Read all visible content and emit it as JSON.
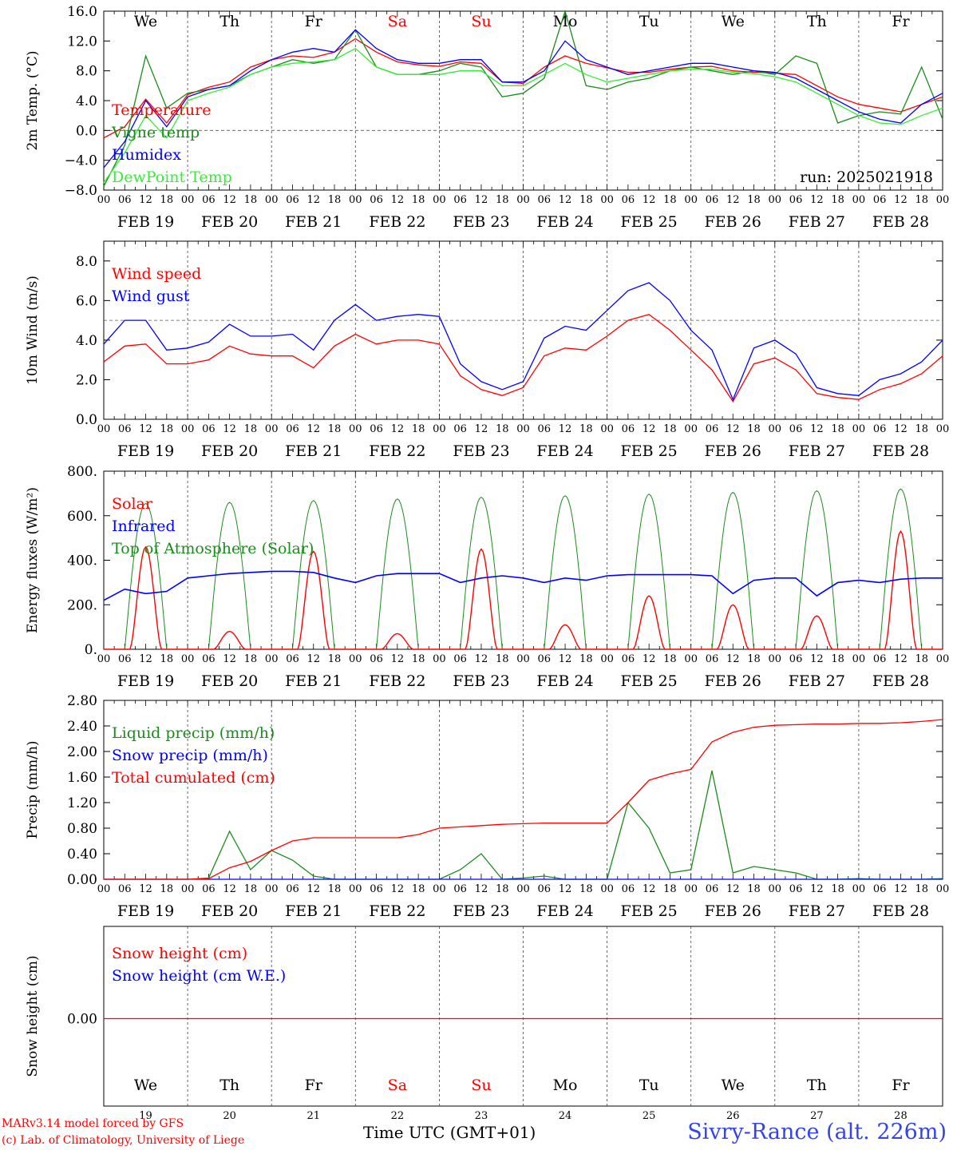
{
  "page": {
    "credit_line1": "MARv3.14 model forced by GFS",
    "credit_line2": "(c) Lab. of Climatology, University of Liege",
    "xaxis_title": "Time UTC (GMT+01)",
    "station": "Sivry-Rance (alt. 226m)",
    "run_label": "run: 2025021918"
  },
  "colors": {
    "red": "#ff0000",
    "dark_green": "#1a8c1a",
    "blue": "#0000ff",
    "light_green": "#33ee33",
    "weekend": "#ff0000",
    "label_blue": "#3344ee"
  },
  "chart_data": [
    {
      "type": "line",
      "panel": "temperature",
      "ylabel": "2m Temp. (°C)",
      "ylim": [
        -8.0,
        16.0
      ],
      "yticks": [
        "16.0",
        "12.0",
        "8.0",
        "4.0",
        "0.0",
        "−4.0",
        "−8.0"
      ],
      "dashed_reference": 0.0,
      "day_labels": [
        "We",
        "Th",
        "Fr",
        "Sa",
        "Su",
        "Mo",
        "Tu",
        "We",
        "Th",
        "Fr"
      ],
      "weekend_days": [
        "Sa",
        "Su"
      ],
      "x_days": [
        "FEB 19",
        "FEB 20",
        "FEB 21",
        "FEB 22",
        "FEB 23",
        "FEB 24",
        "FEB 25",
        "FEB 26",
        "FEB 27",
        "FEB 28"
      ],
      "x_hour_ticks": [
        "00",
        "06",
        "12",
        "18"
      ],
      "x_hours": [
        0,
        6,
        12,
        18,
        24,
        30,
        36,
        42,
        48,
        54,
        60,
        66,
        72,
        78,
        84,
        90,
        96,
        102,
        108,
        114,
        120,
        126,
        132,
        138,
        144,
        150,
        156,
        162,
        168,
        174,
        180,
        186,
        192,
        198,
        204,
        210,
        216,
        222,
        228,
        234,
        240
      ],
      "series": [
        {
          "name": "Temperature",
          "color": "#ff0000",
          "values": [
            -1.0,
            0.5,
            4.2,
            1.0,
            4.8,
            5.8,
            6.5,
            8.5,
            9.5,
            10.0,
            9.8,
            10.5,
            12.3,
            10.5,
            9.2,
            8.8,
            8.6,
            9.2,
            9.0,
            6.5,
            6.3,
            8.5,
            10.0,
            9.0,
            8.4,
            7.8,
            7.8,
            8.2,
            8.5,
            8.6,
            8.0,
            7.8,
            7.7,
            7.5,
            6.0,
            4.5,
            3.5,
            3.0,
            2.5,
            3.5,
            4.5
          ]
        },
        {
          "name": "Vigne temp",
          "color": "#1a8c1a",
          "values": [
            -7.5,
            -2.0,
            10.0,
            3.0,
            5.0,
            5.5,
            6.0,
            7.5,
            8.5,
            9.5,
            9.0,
            9.5,
            13.5,
            8.5,
            7.5,
            7.5,
            8.0,
            9.0,
            8.5,
            4.5,
            5.0,
            7.0,
            16.0,
            6.0,
            5.5,
            6.5,
            7.0,
            8.0,
            8.5,
            8.0,
            7.5,
            8.0,
            7.5,
            10.0,
            9.0,
            1.0,
            2.0,
            2.5,
            2.2,
            8.5,
            1.5
          ]
        },
        {
          "name": "Humidex",
          "color": "#0000ff",
          "values": [
            -5.0,
            -1.5,
            4.0,
            0.5,
            4.5,
            5.5,
            6.0,
            8.0,
            9.5,
            10.5,
            11.0,
            10.5,
            13.5,
            11.0,
            9.5,
            9.0,
            9.0,
            9.5,
            9.5,
            6.5,
            6.5,
            8.0,
            12.0,
            9.5,
            8.5,
            7.5,
            8.0,
            8.5,
            9.0,
            9.0,
            8.5,
            8.0,
            7.8,
            7.0,
            5.5,
            4.0,
            2.5,
            1.5,
            1.0,
            3.5,
            5.0
          ]
        },
        {
          "name": "DewPoint Temp",
          "color": "#33ee33",
          "values": [
            -7.0,
            -3.0,
            2.0,
            -1.0,
            4.0,
            5.0,
            5.8,
            7.5,
            8.5,
            9.0,
            9.2,
            9.5,
            11.0,
            8.5,
            7.5,
            7.5,
            7.5,
            8.0,
            8.0,
            6.0,
            6.0,
            7.5,
            9.0,
            7.5,
            6.5,
            7.0,
            7.5,
            8.0,
            8.2,
            8.2,
            7.8,
            7.6,
            7.2,
            6.5,
            5.0,
            3.5,
            2.0,
            1.0,
            0.8,
            2.0,
            3.0
          ]
        }
      ]
    },
    {
      "type": "line",
      "panel": "wind",
      "ylabel": "10m Wind (m/s)",
      "ylim": [
        0.0,
        9.0
      ],
      "yticks": [
        "8.0",
        "6.0",
        "4.0",
        "2.0",
        "0.0"
      ],
      "dashed_reference": 5.0,
      "x_days": [
        "FEB 19",
        "FEB 20",
        "FEB 21",
        "FEB 22",
        "FEB 23",
        "FEB 24",
        "FEB 25",
        "FEB 26",
        "FEB 27",
        "FEB 28"
      ],
      "x_hour_ticks": [
        "00",
        "06",
        "12",
        "18"
      ],
      "x_hours": [
        0,
        6,
        12,
        18,
        24,
        30,
        36,
        42,
        48,
        54,
        60,
        66,
        72,
        78,
        84,
        90,
        96,
        102,
        108,
        114,
        120,
        126,
        132,
        138,
        144,
        150,
        156,
        162,
        168,
        174,
        180,
        186,
        192,
        198,
        204,
        210,
        216,
        222,
        228,
        234,
        240
      ],
      "series": [
        {
          "name": "Wind speed",
          "color": "#ff0000",
          "values": [
            2.9,
            3.7,
            3.8,
            2.8,
            2.8,
            3.0,
            3.7,
            3.3,
            3.2,
            3.2,
            2.6,
            3.7,
            4.3,
            3.8,
            4.0,
            4.0,
            3.8,
            2.2,
            1.5,
            1.2,
            1.6,
            3.2,
            3.6,
            3.5,
            4.2,
            5.0,
            5.3,
            4.5,
            3.5,
            2.5,
            0.9,
            2.8,
            3.1,
            2.5,
            1.3,
            1.1,
            1.0,
            1.5,
            1.8,
            2.3,
            3.2
          ]
        },
        {
          "name": "Wind gust",
          "color": "#0000ff",
          "values": [
            3.8,
            5.0,
            5.0,
            3.5,
            3.6,
            3.9,
            4.8,
            4.2,
            4.2,
            4.3,
            3.5,
            5.0,
            5.8,
            5.0,
            5.2,
            5.3,
            5.2,
            2.8,
            1.9,
            1.5,
            1.9,
            4.1,
            4.7,
            4.5,
            5.5,
            6.5,
            6.9,
            6.0,
            4.5,
            3.5,
            1.0,
            3.6,
            4.0,
            3.3,
            1.6,
            1.3,
            1.2,
            2.0,
            2.3,
            2.9,
            4.0
          ]
        }
      ]
    },
    {
      "type": "line",
      "panel": "energy",
      "ylabel": "Energy fluxes (W/m²)",
      "ylim": [
        0,
        800
      ],
      "yticks": [
        "800.",
        "600.",
        "400.",
        "200.",
        "0."
      ],
      "x_days": [
        "FEB 19",
        "FEB 20",
        "FEB 21",
        "FEB 22",
        "FEB 23",
        "FEB 24",
        "FEB 25",
        "FEB 26",
        "FEB 27",
        "FEB 28"
      ],
      "x_hour_ticks": [
        "00",
        "06",
        "12",
        "18"
      ],
      "series": [
        {
          "name": "Solar",
          "color": "#ff0000",
          "daily_peak": [
            460,
            80,
            440,
            70,
            450,
            110,
            240,
            200,
            150,
            530
          ]
        },
        {
          "name": "Infrared",
          "color": "#0000ff",
          "x_hours": [
            0,
            6,
            12,
            18,
            24,
            30,
            36,
            42,
            48,
            54,
            60,
            66,
            72,
            78,
            84,
            90,
            96,
            102,
            108,
            114,
            120,
            126,
            132,
            138,
            144,
            150,
            156,
            162,
            168,
            174,
            180,
            186,
            192,
            198,
            204,
            210,
            216,
            222,
            228,
            234,
            240
          ],
          "values": [
            220,
            270,
            250,
            260,
            320,
            330,
            340,
            345,
            350,
            350,
            345,
            320,
            300,
            330,
            340,
            340,
            340,
            300,
            320,
            330,
            320,
            300,
            320,
            310,
            330,
            335,
            335,
            335,
            335,
            330,
            250,
            310,
            320,
            320,
            240,
            300,
            310,
            300,
            315,
            320,
            320
          ]
        },
        {
          "name": "Top of Atmosphere (Solar)",
          "color": "#1a8c1a",
          "daily_peak": [
            655,
            660,
            668,
            675,
            683,
            690,
            697,
            705,
            712,
            720
          ]
        }
      ]
    },
    {
      "type": "line",
      "panel": "precip",
      "ylabel": "Precip (mm/h)",
      "ylim": [
        0.0,
        2.8
      ],
      "yticks": [
        "2.80",
        "2.40",
        "2.00",
        "1.60",
        "1.20",
        "0.80",
        "0.40",
        "0.00"
      ],
      "x_days": [
        "FEB 19",
        "FEB 20",
        "FEB 21",
        "FEB 22",
        "FEB 23",
        "FEB 24",
        "FEB 25",
        "FEB 26",
        "FEB 27",
        "FEB 28"
      ],
      "x_hour_ticks": [
        "00",
        "06",
        "12",
        "18"
      ],
      "x_hours": [
        0,
        6,
        12,
        18,
        24,
        30,
        36,
        42,
        48,
        54,
        60,
        66,
        72,
        78,
        84,
        90,
        96,
        102,
        108,
        114,
        120,
        126,
        132,
        138,
        144,
        150,
        156,
        162,
        168,
        174,
        180,
        186,
        192,
        198,
        204,
        210,
        216,
        222,
        228,
        234,
        240
      ],
      "series": [
        {
          "name": "Liquid precip (mm/h)",
          "color": "#1a8c1a",
          "values": [
            0,
            0,
            0,
            0,
            0,
            0.02,
            0.75,
            0.15,
            0.45,
            0.3,
            0.05,
            0,
            0,
            0,
            0,
            0,
            0,
            0.15,
            0.4,
            0,
            0.02,
            0.05,
            0,
            0,
            0,
            1.2,
            0.8,
            0.1,
            0.15,
            1.7,
            0.1,
            0.2,
            0.15,
            0.1,
            0,
            0,
            0.01,
            0,
            0,
            0,
            0.01
          ]
        },
        {
          "name": "Snow precip (mm/h)",
          "color": "#0000ff",
          "values": [
            0,
            0,
            0,
            0,
            0,
            0,
            0,
            0,
            0,
            0,
            0,
            0,
            0,
            0,
            0,
            0,
            0,
            0,
            0,
            0,
            0,
            0,
            0,
            0,
            0,
            0,
            0,
            0,
            0,
            0,
            0,
            0,
            0,
            0,
            0,
            0,
            0,
            0,
            0,
            0,
            0
          ]
        },
        {
          "name": "Total cumulated (cm)",
          "color": "#ff0000",
          "values": [
            0,
            0,
            0,
            0,
            0,
            0.01,
            0.18,
            0.28,
            0.45,
            0.6,
            0.65,
            0.65,
            0.65,
            0.65,
            0.65,
            0.7,
            0.8,
            0.82,
            0.84,
            0.86,
            0.87,
            0.88,
            0.88,
            0.88,
            0.88,
            1.2,
            1.55,
            1.65,
            1.72,
            2.15,
            2.3,
            2.38,
            2.41,
            2.42,
            2.43,
            2.43,
            2.44,
            2.44,
            2.45,
            2.47,
            2.5
          ]
        }
      ]
    },
    {
      "type": "line",
      "panel": "snow",
      "ylabel": "Snow height (cm)",
      "yticks": [
        "0.00"
      ],
      "day_labels": [
        "We",
        "Th",
        "Fr",
        "Sa",
        "Su",
        "Mo",
        "Tu",
        "We",
        "Th",
        "Fr"
      ],
      "day_numbers": [
        "19",
        "20",
        "21",
        "22",
        "23",
        "24",
        "25",
        "26",
        "27",
        "28"
      ],
      "weekend_days": [
        "Sa",
        "Su"
      ],
      "series": [
        {
          "name": "Snow height (cm)",
          "color": "#ff0000",
          "values": [
            0,
            0,
            0,
            0,
            0,
            0,
            0,
            0,
            0,
            0,
            0
          ]
        },
        {
          "name": "Snow height (cm W.E.)",
          "color": "#0000ff",
          "values": [
            0,
            0,
            0,
            0,
            0,
            0,
            0,
            0,
            0,
            0,
            0
          ]
        }
      ]
    }
  ]
}
